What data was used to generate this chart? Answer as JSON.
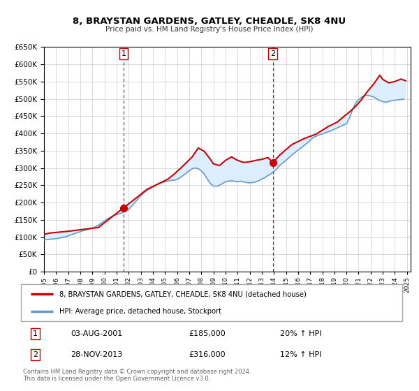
{
  "title": "8, BRAYSTAN GARDENS, GATLEY, CHEADLE, SK8 4NU",
  "subtitle": "Price paid vs. HM Land Registry's House Price Index (HPI)",
  "legend_line1": "8, BRAYSTAN GARDENS, GATLEY, CHEADLE, SK8 4NU (detached house)",
  "legend_line2": "HPI: Average price, detached house, Stockport",
  "annotation1_num": "1",
  "annotation1_date": "03-AUG-2001",
  "annotation1_price": "£185,000",
  "annotation1_pct": "20% ↑ HPI",
  "annotation2_num": "2",
  "annotation2_date": "28-NOV-2013",
  "annotation2_price": "£316,000",
  "annotation2_pct": "12% ↑ HPI",
  "footer": "Contains HM Land Registry data © Crown copyright and database right 2024.\nThis data is licensed under the Open Government Licence v3.0.",
  "property_color": "#cc0000",
  "hpi_color": "#6699cc",
  "shaded_color": "#ddeeff",
  "vline_color": "#cc0000",
  "grid_color": "#cccccc",
  "background_color": "#ffffff",
  "ylim": [
    0,
    650000
  ],
  "yticks": [
    0,
    50000,
    100000,
    150000,
    200000,
    250000,
    300000,
    350000,
    400000,
    450000,
    500000,
    550000,
    600000,
    650000
  ],
  "xlim_start": 1995.0,
  "xlim_end": 2025.3,
  "sale1_x": 2001.583,
  "sale1_y": 185000,
  "sale2_x": 2013.91,
  "sale2_y": 316000,
  "vline1_x": 2001.583,
  "vline2_x": 2013.91,
  "hpi_years": [
    1995.0,
    1995.25,
    1995.5,
    1995.75,
    1996.0,
    1996.25,
    1996.5,
    1996.75,
    1997.0,
    1997.25,
    1997.5,
    1997.75,
    1998.0,
    1998.25,
    1998.5,
    1998.75,
    1999.0,
    1999.25,
    1999.5,
    1999.75,
    2000.0,
    2000.25,
    2000.5,
    2000.75,
    2001.0,
    2001.25,
    2001.5,
    2001.75,
    2002.0,
    2002.25,
    2002.5,
    2002.75,
    2003.0,
    2003.25,
    2003.5,
    2003.75,
    2004.0,
    2004.25,
    2004.5,
    2004.75,
    2005.0,
    2005.25,
    2005.5,
    2005.75,
    2006.0,
    2006.25,
    2006.5,
    2006.75,
    2007.0,
    2007.25,
    2007.5,
    2007.75,
    2008.0,
    2008.25,
    2008.5,
    2008.75,
    2009.0,
    2009.25,
    2009.5,
    2009.75,
    2010.0,
    2010.25,
    2010.5,
    2010.75,
    2011.0,
    2011.25,
    2011.5,
    2011.75,
    2012.0,
    2012.25,
    2012.5,
    2012.75,
    2013.0,
    2013.25,
    2013.5,
    2013.75,
    2014.0,
    2014.25,
    2014.5,
    2014.75,
    2015.0,
    2015.25,
    2015.5,
    2015.75,
    2016.0,
    2016.25,
    2016.5,
    2016.75,
    2017.0,
    2017.25,
    2017.5,
    2017.75,
    2018.0,
    2018.25,
    2018.5,
    2018.75,
    2019.0,
    2019.25,
    2019.5,
    2019.75,
    2020.0,
    2020.25,
    2020.5,
    2020.75,
    2021.0,
    2021.25,
    2021.5,
    2021.75,
    2022.0,
    2022.25,
    2022.5,
    2022.75,
    2023.0,
    2023.25,
    2023.5,
    2023.75,
    2024.0,
    2024.25,
    2024.5,
    2024.75
  ],
  "hpi_values": [
    92000,
    93000,
    94000,
    95000,
    96000,
    97000,
    99000,
    101000,
    104000,
    107000,
    110000,
    113000,
    116000,
    119000,
    121000,
    123000,
    126000,
    130000,
    135000,
    141000,
    147000,
    153000,
    158000,
    162000,
    165000,
    168000,
    171000,
    175000,
    180000,
    190000,
    200000,
    210000,
    220000,
    228000,
    235000,
    240000,
    245000,
    250000,
    255000,
    258000,
    260000,
    262000,
    264000,
    265000,
    267000,
    272000,
    278000,
    285000,
    292000,
    298000,
    300000,
    298000,
    292000,
    282000,
    268000,
    255000,
    248000,
    247000,
    250000,
    255000,
    260000,
    262000,
    263000,
    262000,
    260000,
    262000,
    260000,
    258000,
    257000,
    258000,
    260000,
    263000,
    268000,
    272000,
    278000,
    283000,
    290000,
    298000,
    308000,
    315000,
    322000,
    330000,
    338000,
    345000,
    352000,
    358000,
    365000,
    372000,
    380000,
    388000,
    392000,
    396000,
    398000,
    402000,
    405000,
    408000,
    412000,
    416000,
    420000,
    424000,
    428000,
    445000,
    468000,
    488000,
    498000,
    505000,
    510000,
    510000,
    508000,
    505000,
    500000,
    495000,
    492000,
    490000,
    492000,
    495000,
    496000,
    497000,
    498000,
    499000
  ],
  "property_years": [
    1995.0,
    1995.5,
    1997.0,
    1999.5,
    2001.583,
    2002.5,
    2003.5,
    2004.5,
    2005.25,
    2005.75,
    2006.25,
    2006.75,
    2007.25,
    2007.75,
    2008.25,
    2008.75,
    2009.0,
    2009.5,
    2010.0,
    2010.5,
    2011.0,
    2011.5,
    2012.0,
    2012.5,
    2013.0,
    2013.5,
    2013.91,
    2014.5,
    2015.5,
    2016.5,
    2017.5,
    2018.5,
    2019.25,
    2019.75,
    2020.25,
    2020.75,
    2021.25,
    2021.75,
    2022.25,
    2022.75,
    2023.0,
    2023.5,
    2024.0,
    2024.5,
    2024.9
  ],
  "property_values": [
    108000,
    112000,
    117000,
    128000,
    185000,
    210000,
    238000,
    255000,
    268000,
    282000,
    298000,
    315000,
    332000,
    358000,
    348000,
    325000,
    312000,
    307000,
    322000,
    332000,
    322000,
    316000,
    318000,
    322000,
    325000,
    330000,
    316000,
    338000,
    368000,
    385000,
    398000,
    420000,
    433000,
    448000,
    462000,
    478000,
    498000,
    522000,
    543000,
    568000,
    556000,
    546000,
    550000,
    557000,
    552000
  ]
}
